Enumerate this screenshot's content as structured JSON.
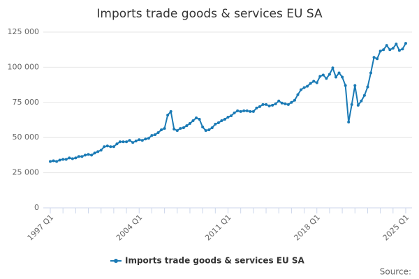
{
  "chart_data": {
    "type": "line",
    "title": "Imports trade goods & services EU SA",
    "source": "Source:",
    "categories": [
      "1997 Q1",
      null,
      null,
      null,
      null,
      null,
      null,
      null,
      null,
      null,
      null,
      null,
      null,
      null,
      null,
      null,
      null,
      null,
      null,
      null,
      null,
      null,
      null,
      null,
      null,
      null,
      null,
      null,
      "2004 Q1",
      null,
      null,
      null,
      null,
      null,
      null,
      null,
      null,
      null,
      null,
      null,
      null,
      null,
      null,
      null,
      null,
      null,
      null,
      null,
      null,
      null,
      null,
      null,
      null,
      null,
      null,
      null,
      "2011 Q1",
      null,
      null,
      null,
      null,
      null,
      null,
      null,
      null,
      null,
      null,
      null,
      null,
      null,
      null,
      null,
      null,
      null,
      null,
      null,
      null,
      null,
      null,
      null,
      null,
      null,
      null,
      null,
      "2018 Q1",
      null,
      null,
      null,
      null,
      null,
      null,
      null,
      null,
      null,
      null,
      null,
      null,
      null,
      null,
      null,
      null,
      null,
      null,
      null,
      null,
      null,
      null,
      null,
      null,
      null,
      null,
      null,
      "2025 Q1"
    ],
    "series": [
      {
        "name": "Imports trade goods & services EU SA",
        "color": "#1a7ab5",
        "values": [
          33000,
          33500,
          33000,
          34000,
          34500,
          34500,
          35500,
          35000,
          35500,
          36500,
          36500,
          37500,
          38000,
          37500,
          39000,
          40000,
          41000,
          43500,
          44000,
          43500,
          43500,
          45500,
          47000,
          47000,
          47000,
          48000,
          46500,
          47500,
          48500,
          48000,
          49000,
          49500,
          51500,
          52000,
          53500,
          55500,
          56500,
          66000,
          68500,
          56000,
          55000,
          56500,
          57000,
          58500,
          60000,
          62000,
          64000,
          63000,
          57500,
          55000,
          55500,
          57000,
          59500,
          60500,
          62000,
          63000,
          64500,
          65500,
          67500,
          69000,
          68500,
          69000,
          69000,
          68500,
          68500,
          71000,
          72000,
          73500,
          73500,
          72500,
          73000,
          74000,
          76000,
          74500,
          74000,
          73500,
          75000,
          76500,
          80500,
          84000,
          85500,
          86500,
          88500,
          90000,
          89000,
          93500,
          94500,
          92000,
          95000,
          99500,
          93000,
          96000,
          93000,
          87000,
          61000,
          73500,
          87000,
          73000,
          76000,
          80000,
          86000,
          96000,
          107000,
          106000,
          111500,
          112500,
          115500,
          112500,
          113500,
          116500,
          112000,
          113000,
          117000
        ]
      }
    ],
    "ylim": [
      0,
      125000
    ],
    "yticks": [
      0,
      {
        "value": 25000,
        "label": "25 000"
      },
      {
        "value": 50000,
        "label": "50 000"
      },
      {
        "value": 75000,
        "label": "75 000"
      },
      {
        "value": 100000,
        "label": "100 000"
      },
      {
        "value": 125000,
        "label": "125 000"
      }
    ],
    "grid": true,
    "legend": "bottom"
  }
}
